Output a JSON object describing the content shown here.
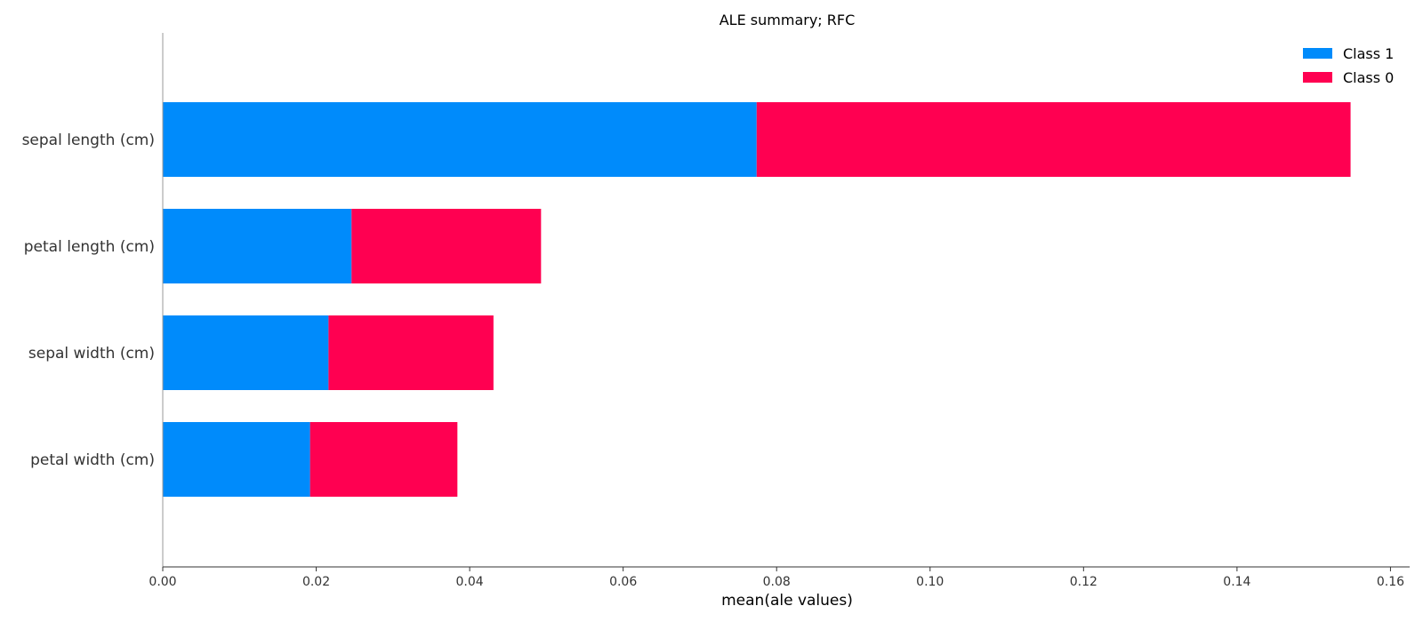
{
  "chart_data": {
    "type": "bar",
    "orientation": "horizontal",
    "stacked": true,
    "title": "ALE summary; RFC",
    "xlabel": "mean(ale values)",
    "ylabel": "",
    "xlim": [
      0,
      0.1625
    ],
    "xticks": [
      0.0,
      0.02,
      0.04,
      0.06,
      0.08,
      0.1,
      0.12,
      0.14,
      0.16
    ],
    "xtick_labels": [
      "0.00",
      "0.02",
      "0.04",
      "0.06",
      "0.08",
      "0.10",
      "0.12",
      "0.14",
      "0.16"
    ],
    "categories": [
      "sepal length (cm)",
      "petal length (cm)",
      "sepal width (cm)",
      "petal width (cm)"
    ],
    "series": [
      {
        "name": "Class 1",
        "color": "#008bfb",
        "values": [
          0.0774,
          0.0246,
          0.0216,
          0.0192
        ]
      },
      {
        "name": "Class 0",
        "color": "#ff0051",
        "values": [
          0.0774,
          0.0247,
          0.0215,
          0.0192
        ]
      }
    ],
    "legend": {
      "position": "top-right",
      "order": [
        "Class 1",
        "Class 0"
      ]
    },
    "grid": false
  }
}
